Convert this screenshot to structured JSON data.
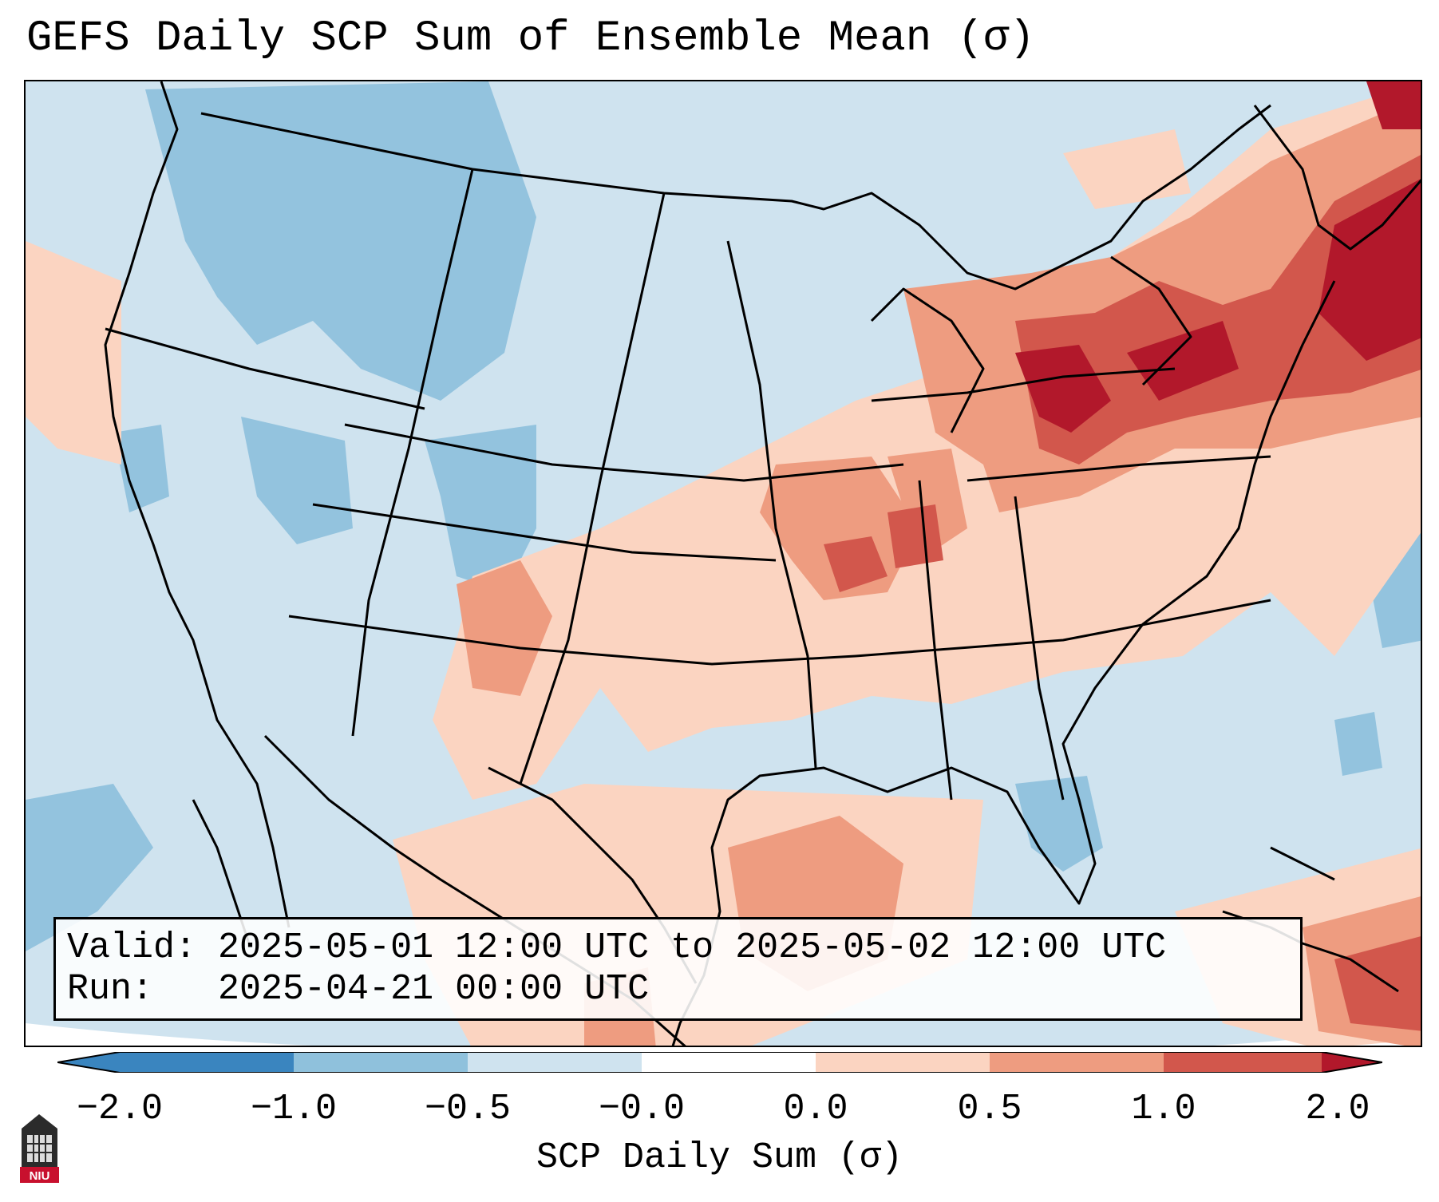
{
  "title": "GEFS Daily SCP Sum of Ensemble Mean (σ)",
  "info": {
    "valid": "Valid: 2025-05-01 12:00 UTC to 2025-05-02 12:00 UTC",
    "run": "Run:   2025-04-21 00:00 UTC"
  },
  "colorbar": {
    "label": "SCP Daily Sum (σ)",
    "ticks": [
      "−2.0",
      "−1.0",
      "−0.5",
      "−0.0",
      "0.0",
      "0.5",
      "1.0",
      "2.0"
    ],
    "colors": [
      "#3a85bf",
      "#8fc1dc",
      "#cfe3ef",
      "#ffffff",
      "#fbd4c1",
      "#ee9c80",
      "#d2574c",
      "#b2182b"
    ]
  },
  "map": {
    "background_color": "#cfe3ef",
    "high_anomaly_regions": [
      "Great Lakes",
      "New England",
      "Mid-Mississippi Valley",
      "Southern Plains",
      "Gulf of Mexico",
      "Caribbean"
    ],
    "low_anomaly_regions": [
      "Northern Rockies",
      "Pacific Northwest",
      "Eastern Pacific",
      "Central Atlantic"
    ]
  },
  "logo": {
    "text": "NIU"
  }
}
